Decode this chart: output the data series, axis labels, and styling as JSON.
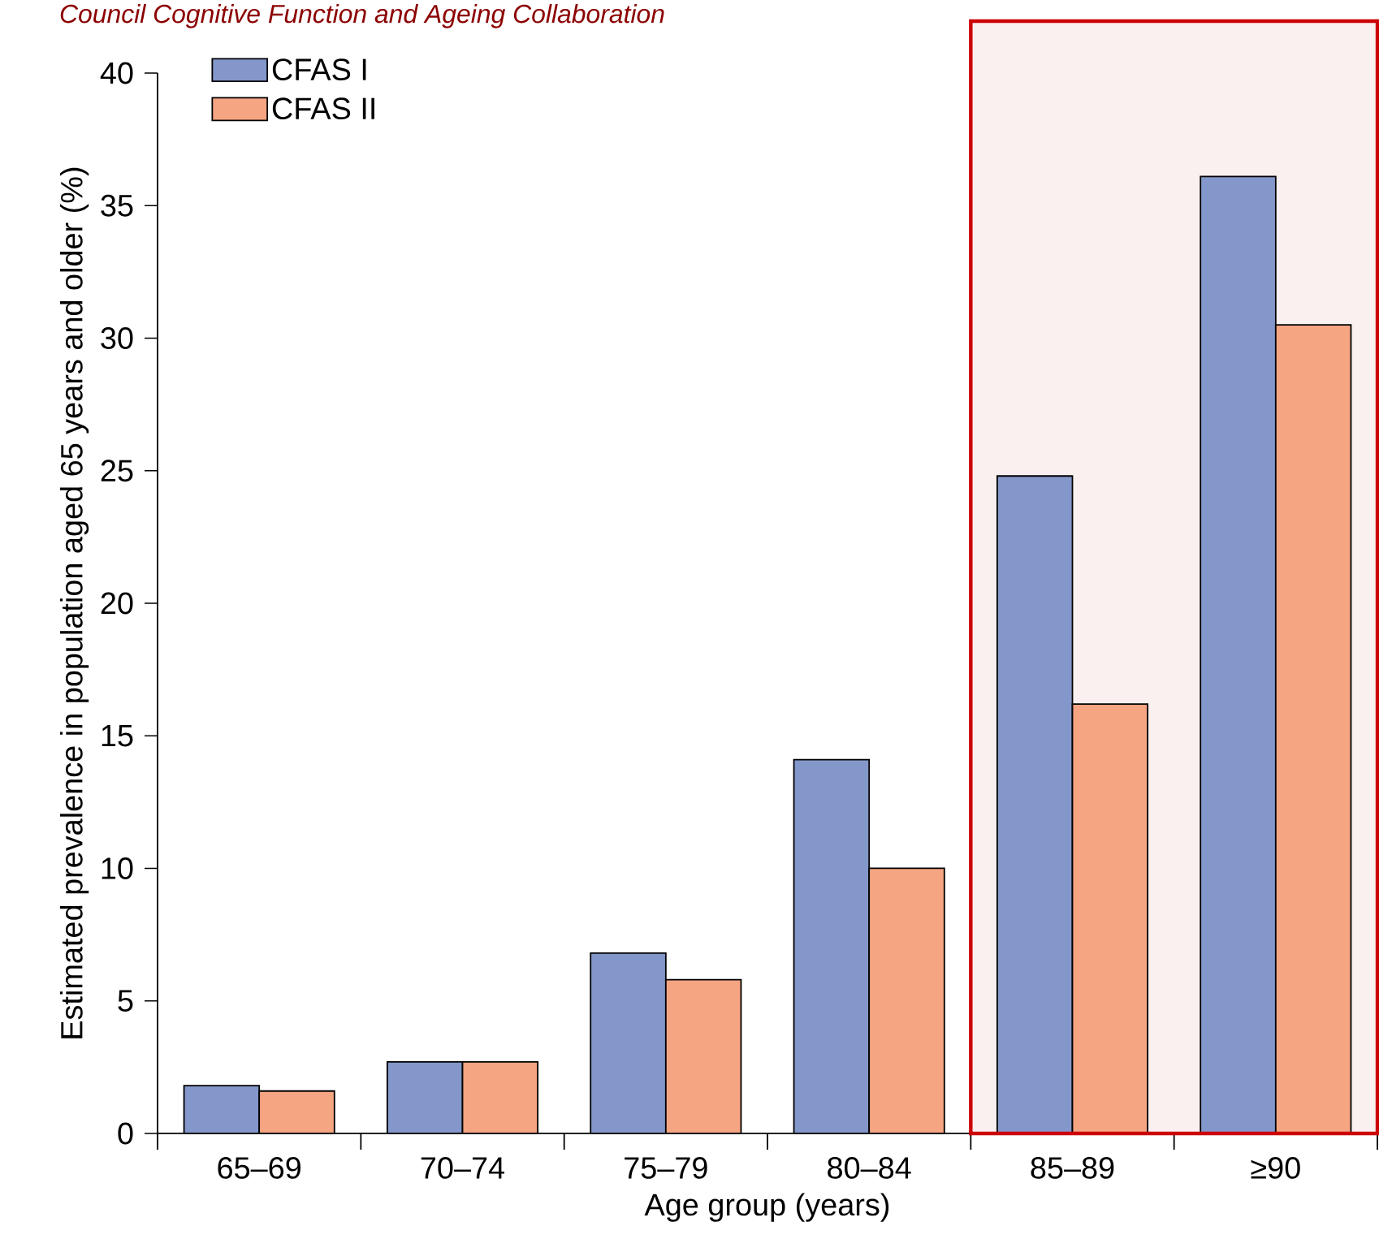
{
  "chart_data": {
    "type": "bar",
    "categories": [
      "65–69",
      "70–74",
      "75–79",
      "80–84",
      "85–89",
      "≥90"
    ],
    "series": [
      {
        "name": "CFAS I",
        "color": "#8497ca",
        "values": [
          1.8,
          2.7,
          6.8,
          14.1,
          24.8,
          36.1
        ]
      },
      {
        "name": "CFAS II",
        "color": "#f5a582",
        "values": [
          1.6,
          2.7,
          5.8,
          10.0,
          16.2,
          30.5
        ]
      }
    ],
    "xlabel": "Age group (years)",
    "ylabel": "Estimated prevalence in population aged 65 years and older (%)",
    "ylim": [
      0,
      40
    ],
    "yticks": [
      0,
      5,
      10,
      15,
      20,
      25,
      30,
      35,
      40
    ],
    "legend": "top left",
    "bands": [
      {
        "axis": "x",
        "from": "85–89",
        "to": "≥90",
        "color": "#fbf0f0"
      }
    ],
    "annotations": [
      "Council Cognitive Function and Ageing Collaboration"
    ]
  }
}
